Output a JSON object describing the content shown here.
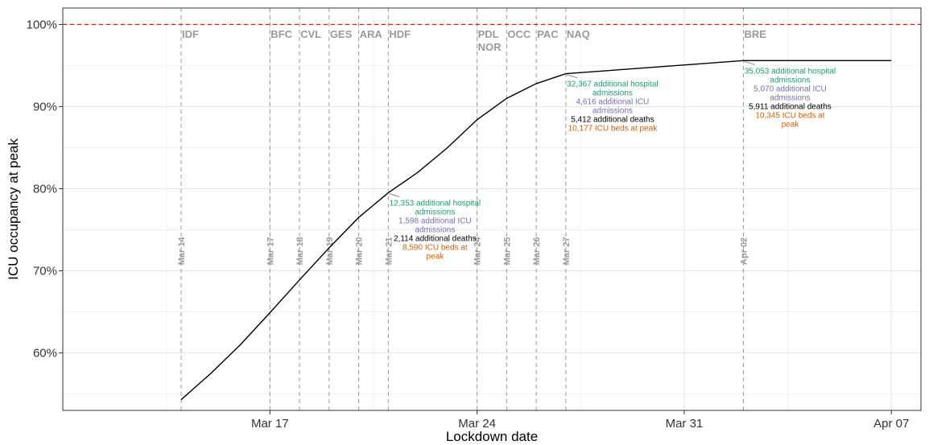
{
  "chart_data": {
    "type": "line",
    "title": "",
    "xlabel": "Lockdown date",
    "ylabel": "ICU occupancy at peak",
    "xlim": [
      "2020-03-10",
      "2020-04-08"
    ],
    "ylim": [
      53,
      102
    ],
    "x_ticks": [
      {
        "date": "2020-03-17",
        "label": "Mar 17"
      },
      {
        "date": "2020-03-24",
        "label": "Mar 24"
      },
      {
        "date": "2020-03-31",
        "label": "Mar 31"
      },
      {
        "date": "2020-04-07",
        "label": "Apr 07"
      }
    ],
    "y_ticks": [
      {
        "value": 60,
        "label": "60%"
      },
      {
        "value": 70,
        "label": "70%"
      },
      {
        "value": 80,
        "label": "80%"
      },
      {
        "value": 90,
        "label": "90%"
      },
      {
        "value": 100,
        "label": "100%"
      }
    ],
    "grid": true,
    "capacity_line": {
      "value": 100,
      "color": "#e31a1c",
      "style": "dashed"
    },
    "series": [
      {
        "color": "#000000",
        "points": [
          {
            "x": "2020-03-14",
            "y": 54.3
          },
          {
            "x": "2020-03-15",
            "y": 57.5
          },
          {
            "x": "2020-03-16",
            "y": 61.0
          },
          {
            "x": "2020-03-17",
            "y": 64.9
          },
          {
            "x": "2020-03-18",
            "y": 68.9
          },
          {
            "x": "2020-03-19",
            "y": 72.8
          },
          {
            "x": "2020-03-20",
            "y": 76.5
          },
          {
            "x": "2020-03-21",
            "y": 79.5
          },
          {
            "x": "2020-03-22",
            "y": 82.0
          },
          {
            "x": "2020-03-23",
            "y": 85.0
          },
          {
            "x": "2020-03-24",
            "y": 88.4
          },
          {
            "x": "2020-03-25",
            "y": 91.0
          },
          {
            "x": "2020-03-26",
            "y": 92.8
          },
          {
            "x": "2020-03-27",
            "y": 94.0
          },
          {
            "x": "2020-04-02",
            "y": 95.6
          },
          {
            "x": "2020-04-07",
            "y": 95.6
          }
        ]
      }
    ],
    "regions": [
      {
        "date": "2020-03-14",
        "date_label": "Mar 14",
        "labels": [
          "IDF"
        ]
      },
      {
        "date": "2020-03-17",
        "date_label": "Mar 17",
        "labels": [
          "BFC"
        ]
      },
      {
        "date": "2020-03-18",
        "date_label": "Mar 18",
        "labels": [
          "CVL"
        ]
      },
      {
        "date": "2020-03-19",
        "date_label": "Mar 19",
        "labels": [
          "GES"
        ]
      },
      {
        "date": "2020-03-20",
        "date_label": "Mar 20",
        "labels": [
          "ARA"
        ]
      },
      {
        "date": "2020-03-21",
        "date_label": "Mar 21",
        "labels": [
          "HDF"
        ]
      },
      {
        "date": "2020-03-24",
        "date_label": "Mar 24",
        "labels": [
          "PDL",
          "NOR"
        ]
      },
      {
        "date": "2020-03-25",
        "date_label": "Mar 25",
        "labels": [
          "OCC"
        ]
      },
      {
        "date": "2020-03-26",
        "date_label": "Mar 26",
        "labels": [
          "PAC"
        ]
      },
      {
        "date": "2020-03-27",
        "date_label": "Mar 27",
        "labels": [
          "NAQ"
        ]
      },
      {
        "date": "2020-04-02",
        "date_label": "Apr 02",
        "labels": [
          "BRE"
        ]
      }
    ],
    "annotations": [
      {
        "x": "2020-03-21",
        "y": 79.5,
        "lines": [
          {
            "text": "12,353 additional hospital",
            "color": "#1b9e77"
          },
          {
            "text": "admissions",
            "color": "#1b9e77"
          },
          {
            "text": "1,598 additional ICU",
            "color": "#7570b3"
          },
          {
            "text": "admissions",
            "color": "#7570b3"
          },
          {
            "text": "2,114 additional deaths",
            "color": "#000000"
          },
          {
            "text": "8,590 ICU beds at",
            "color": "#d95f02"
          },
          {
            "text": "peak",
            "color": "#d95f02"
          }
        ]
      },
      {
        "x": "2020-03-27",
        "y": 94.0,
        "lines": [
          {
            "text": "32,367 additional hospital",
            "color": "#1b9e77"
          },
          {
            "text": "admissions",
            "color": "#1b9e77"
          },
          {
            "text": "4,616 additional ICU",
            "color": "#7570b3"
          },
          {
            "text": "admissions",
            "color": "#7570b3"
          },
          {
            "text": "5,412 additional deaths",
            "color": "#000000"
          },
          {
            "text": "10,177 ICU beds at peak",
            "color": "#d95f02"
          }
        ]
      },
      {
        "x": "2020-04-02",
        "y": 95.6,
        "lines": [
          {
            "text": "35,053 additional hospital",
            "color": "#1b9e77"
          },
          {
            "text": "admissions",
            "color": "#1b9e77"
          },
          {
            "text": "5,070 additional ICU",
            "color": "#7570b3"
          },
          {
            "text": "admissions",
            "color": "#7570b3"
          },
          {
            "text": "5,911 additional deaths",
            "color": "#000000"
          },
          {
            "text": "10,345 ICU beds at",
            "color": "#d95f02"
          },
          {
            "text": "peak",
            "color": "#d95f02"
          }
        ]
      }
    ]
  }
}
